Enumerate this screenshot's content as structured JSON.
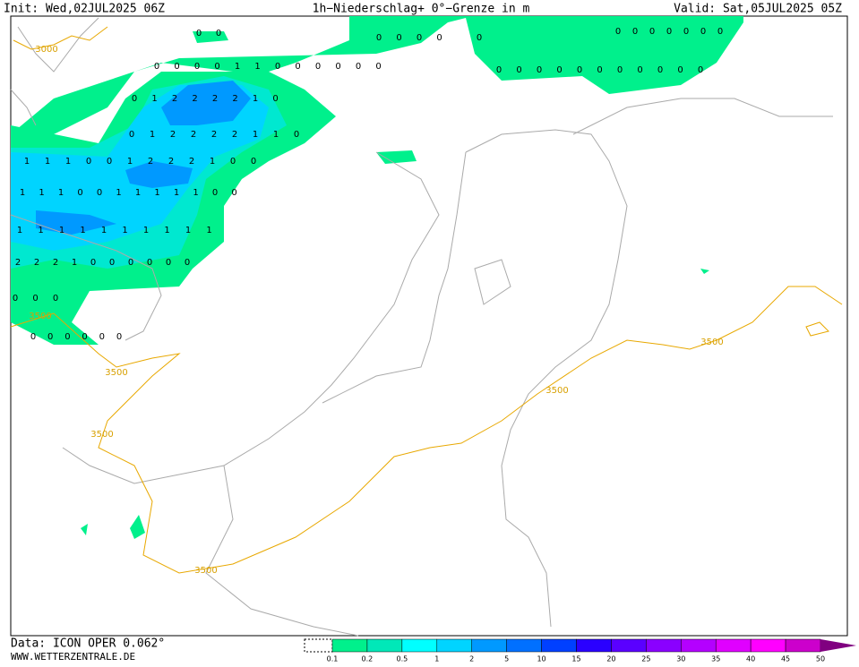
{
  "header": {
    "init": "Init: Wed,02JUL2025 06Z",
    "title": "1h−Niederschlag+ 0°−Grenze in m",
    "valid": "Valid: Sat,05JUL2025 05Z"
  },
  "footer": {
    "data": "Data: ICON OPER 0.062°",
    "site": "WWW.WETTERZENTRALE.DE"
  },
  "colorbar": {
    "labels": [
      0.1,
      0.2,
      0.5,
      1,
      2,
      5,
      10,
      15,
      20,
      25,
      30,
      35,
      40,
      45,
      50
    ],
    "colors": [
      "#00f08c",
      "#00e8b8",
      "#00ffff",
      "#00d4ff",
      "#0099ff",
      "#0070ff",
      "#0040ff",
      "#2a00ff",
      "#5a00ff",
      "#8a00ff",
      "#b400ff",
      "#e000ff",
      "#ff00ff",
      "#cc00cc",
      "#990099",
      "#800080"
    ]
  },
  "contour_labels": [
    3000,
    3500,
    3500,
    3500,
    3500,
    3500,
    3500
  ],
  "precip_labels": [
    [
      0,
      0
    ],
    [
      0,
      0,
      0,
      0
    ],
    [
      0
    ],
    [
      0,
      0,
      0,
      0,
      0,
      0,
      0
    ],
    [
      0,
      0,
      0,
      0,
      1,
      1,
      0,
      0,
      0,
      0,
      0,
      0
    ],
    [
      0,
      0,
      0,
      0,
      0,
      0,
      0,
      0,
      0,
      0,
      0
    ],
    [
      0,
      1,
      2,
      2,
      2,
      2,
      1,
      0
    ],
    [
      0,
      1,
      2,
      2,
      2,
      2,
      1,
      1,
      0
    ],
    [
      1,
      1,
      1,
      0,
      0,
      1,
      2,
      2,
      2,
      1,
      0,
      0
    ],
    [
      1,
      1,
      1,
      0,
      0,
      1,
      1,
      1,
      1,
      1,
      0,
      0
    ],
    [
      1,
      1,
      1,
      1,
      1,
      1,
      1,
      1,
      1,
      1
    ],
    [
      2,
      2,
      2,
      1,
      0,
      0,
      0,
      0,
      0,
      0
    ],
    [
      0,
      0,
      0
    ],
    [
      0,
      0,
      0,
      0,
      0,
      0
    ]
  ]
}
